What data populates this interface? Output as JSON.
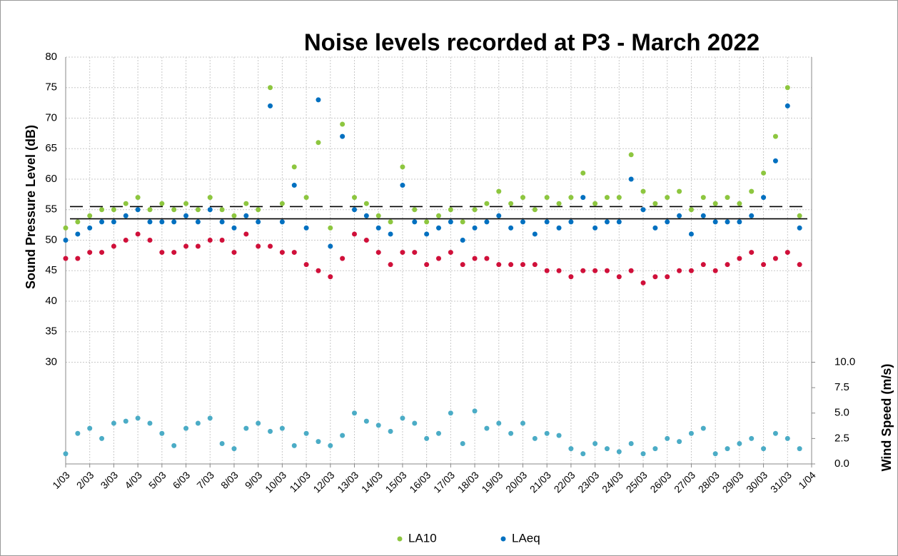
{
  "chart_data": {
    "type": "scatter",
    "title": "Noise levels recorded at P3 - March 2022",
    "y_label": "Sound Pressure Level (dB)",
    "y2_label": "Wind Speed (m/s)",
    "xlim": [
      1,
      32
    ],
    "xticks": [
      {
        "value": 1,
        "label": "1/03"
      },
      {
        "value": 2,
        "label": "2/03"
      },
      {
        "value": 3,
        "label": "3/03"
      },
      {
        "value": 4,
        "label": "4/03"
      },
      {
        "value": 5,
        "label": "5/03"
      },
      {
        "value": 6,
        "label": "6/03"
      },
      {
        "value": 7,
        "label": "7/03"
      },
      {
        "value": 8,
        "label": "8/03"
      },
      {
        "value": 9,
        "label": "9/03"
      },
      {
        "value": 10,
        "label": "10/03"
      },
      {
        "value": 11,
        "label": "11/03"
      },
      {
        "value": 12,
        "label": "12/03"
      },
      {
        "value": 13,
        "label": "13/03"
      },
      {
        "value": 14,
        "label": "14/03"
      },
      {
        "value": 15,
        "label": "15/03"
      },
      {
        "value": 16,
        "label": "16/03"
      },
      {
        "value": 17,
        "label": "17/03"
      },
      {
        "value": 18,
        "label": "18/03"
      },
      {
        "value": 19,
        "label": "19/03"
      },
      {
        "value": 20,
        "label": "20/03"
      },
      {
        "value": 21,
        "label": "21/03"
      },
      {
        "value": 22,
        "label": "22/03"
      },
      {
        "value": 23,
        "label": "23/03"
      },
      {
        "value": 24,
        "label": "24/03"
      },
      {
        "value": 25,
        "label": "25/03"
      },
      {
        "value": 26,
        "label": "26/03"
      },
      {
        "value": 27,
        "label": "27/03"
      },
      {
        "value": 28,
        "label": "28/03"
      },
      {
        "value": 29,
        "label": "29/03"
      },
      {
        "value": 30,
        "label": "30/03"
      },
      {
        "value": 31,
        "label": "31/03"
      },
      {
        "value": 32,
        "label": "1/04"
      }
    ],
    "ylim": [
      13.33,
      80
    ],
    "yticks": [
      30,
      35,
      40,
      45,
      50,
      55,
      60,
      65,
      70,
      75,
      80
    ],
    "y2lim": [
      0,
      40
    ],
    "y2ticks": [
      {
        "value": 0,
        "label": "0.0"
      },
      2.5,
      {
        "value": 5,
        "label": "5.0"
      },
      7.5,
      {
        "value": 10,
        "label": "10.0"
      }
    ],
    "grid": true,
    "legend": "bottom",
    "x": [
      1,
      1.5,
      2,
      2.5,
      3,
      3.5,
      4,
      4.5,
      5,
      5.5,
      6,
      6.5,
      7,
      7.5,
      8,
      8.5,
      9,
      9.5,
      10,
      10.5,
      11,
      11.5,
      12,
      12.5,
      13,
      13.5,
      14,
      14.5,
      15,
      15.5,
      16,
      16.5,
      17,
      17.5,
      18,
      18.5,
      19,
      19.5,
      20,
      20.5,
      21,
      21.5,
      22,
      22.5,
      23,
      23.5,
      24,
      24.5,
      25,
      25.5,
      26,
      26.5,
      27,
      27.5,
      28,
      28.5,
      29,
      29.5,
      30,
      30.5,
      31,
      31.5
    ],
    "series": [
      {
        "name": "LA10",
        "color": "#8dc63f",
        "values": [
          52,
          53,
          54,
          55,
          55,
          56,
          57,
          55,
          56,
          55,
          56,
          55,
          57,
          55,
          54,
          56,
          55,
          75,
          56,
          62,
          57,
          66,
          52,
          69,
          57,
          56,
          54,
          53,
          62,
          55,
          53,
          54,
          55,
          53,
          55,
          56,
          58,
          56,
          57,
          55,
          57,
          56,
          57,
          61,
          56,
          57,
          57,
          64,
          58,
          56,
          57,
          58,
          55,
          57,
          56,
          57,
          56,
          58,
          61,
          67,
          75,
          54
        ]
      },
      {
        "name": "LAeq",
        "color": "#0070c0",
        "values": [
          50,
          51,
          52,
          53,
          53,
          54,
          55,
          53,
          53,
          53,
          54,
          53,
          55,
          53,
          52,
          54,
          53,
          72,
          53,
          59,
          52,
          73,
          49,
          67,
          55,
          54,
          52,
          51,
          59,
          53,
          51,
          52,
          53,
          50,
          52,
          53,
          54,
          52,
          53,
          51,
          53,
          52,
          53,
          57,
          52,
          53,
          53,
          60,
          55,
          52,
          53,
          54,
          51,
          54,
          53,
          53,
          53,
          54,
          57,
          63,
          72,
          52
        ]
      },
      {
        "color": "#d0103a",
        "values": [
          47,
          47,
          48,
          48,
          49,
          50,
          51,
          50,
          48,
          48,
          49,
          49,
          50,
          50,
          48,
          51,
          49,
          49,
          48,
          48,
          46,
          45,
          44,
          47,
          51,
          50,
          48,
          46,
          48,
          48,
          46,
          47,
          48,
          46,
          47,
          47,
          46,
          46,
          46,
          46,
          45,
          45,
          44,
          45,
          45,
          45,
          44,
          45,
          43,
          44,
          44,
          45,
          45,
          46,
          45,
          46,
          47,
          48,
          46,
          47,
          48,
          46
        ]
      },
      {
        "color": "#4bacc6",
        "axis": "y2",
        "values": [
          1.0,
          3.0,
          3.5,
          2.5,
          4.0,
          4.2,
          4.5,
          4.0,
          3.0,
          1.8,
          3.5,
          4.0,
          4.5,
          2.0,
          1.5,
          3.5,
          4.0,
          3.2,
          3.5,
          1.8,
          3.0,
          2.2,
          1.8,
          2.8,
          5.0,
          4.2,
          3.8,
          3.2,
          4.5,
          4.0,
          2.5,
          3.0,
          5.0,
          2.0,
          5.2,
          3.5,
          4.0,
          3.0,
          4.0,
          2.5,
          3.0,
          2.8,
          1.5,
          1.0,
          2.0,
          1.5,
          1.2,
          2.0,
          1.0,
          1.5,
          2.5,
          2.2,
          3.0,
          3.5,
          1.0,
          1.5,
          2.0,
          2.5,
          1.5,
          3.0,
          2.5,
          1.5
        ]
      }
    ],
    "reference_lines": [
      {
        "value": 55.5,
        "dashed": true
      },
      {
        "value": 53.5,
        "dashed": false
      }
    ]
  }
}
